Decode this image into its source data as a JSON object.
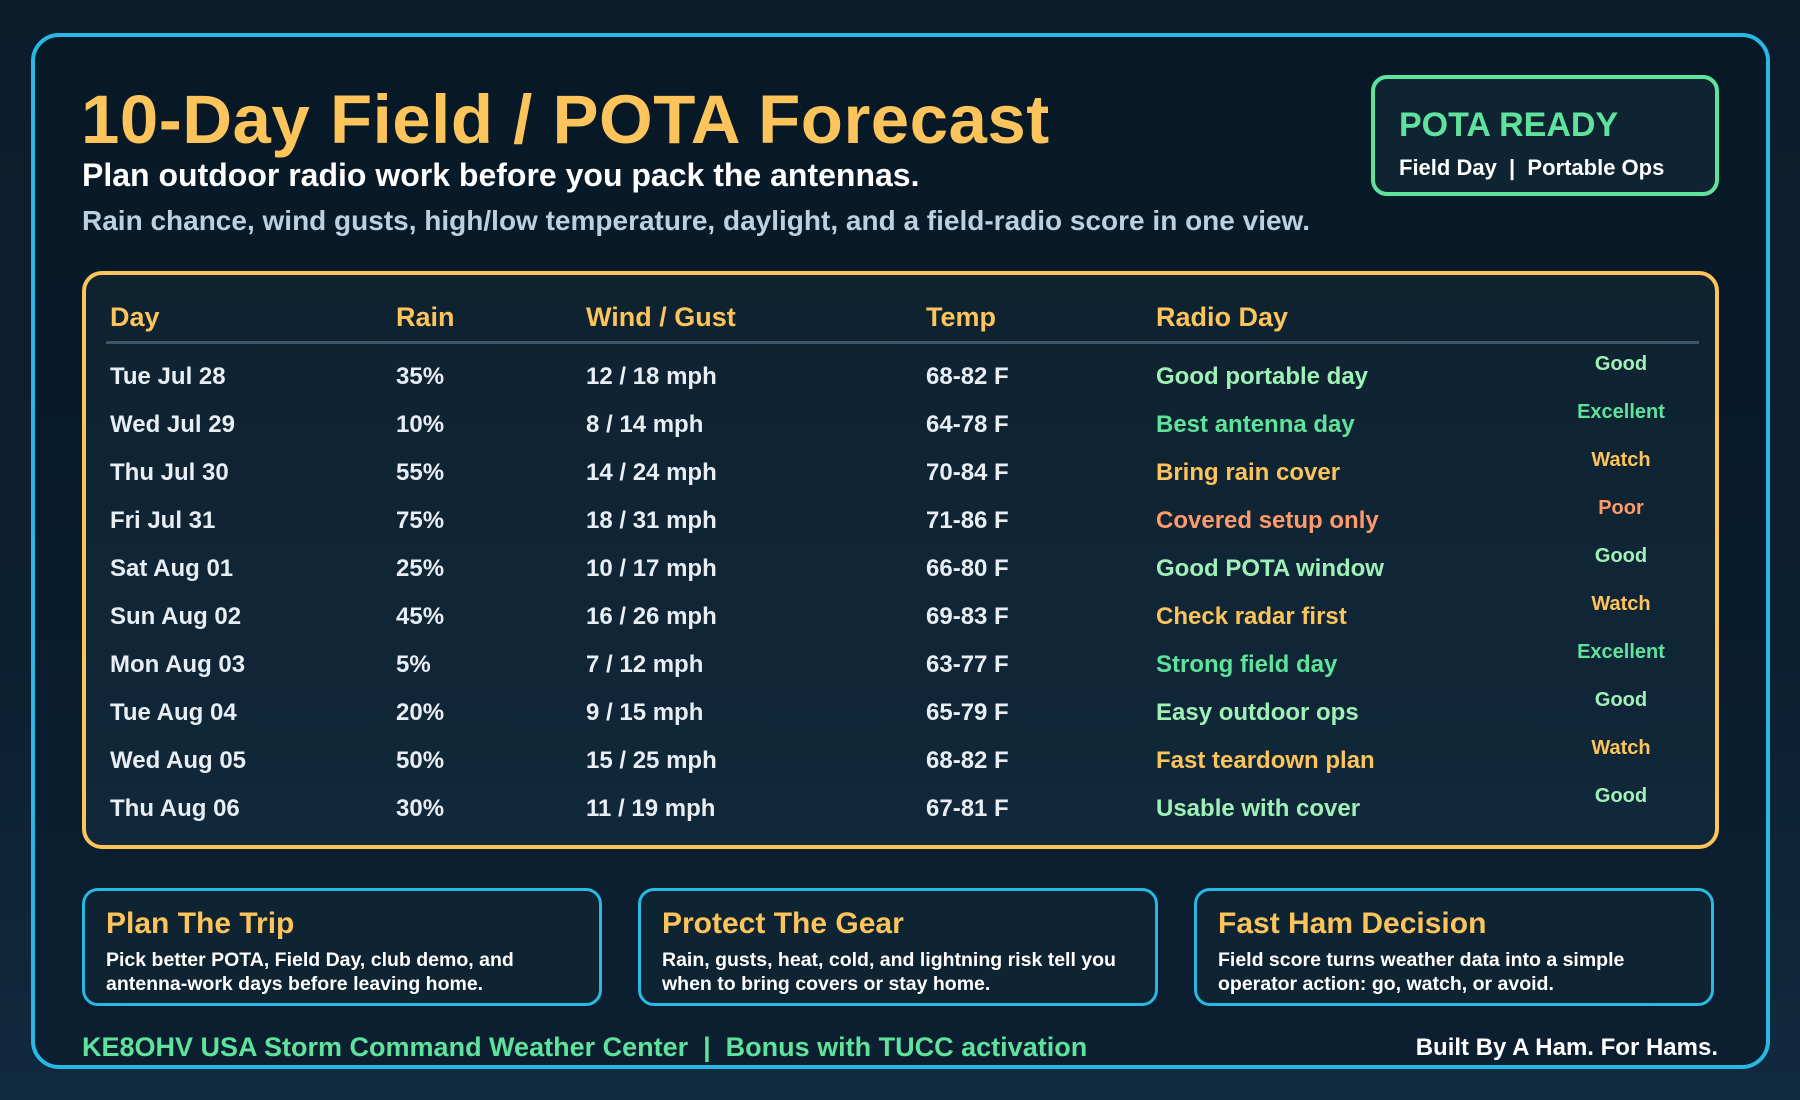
{
  "header": {
    "title": "10-Day Field / POTA Forecast",
    "subtitle": "Plan outdoor radio work before you pack the antennas.",
    "description": "Rain chance, wind gusts, high/low temperature, daylight, and a field-radio score in one view."
  },
  "badge": {
    "title": "POTA READY",
    "subtitle": "Field Day  |  Portable Ops"
  },
  "table": {
    "columns": [
      "Day",
      "Rain",
      "Wind / Gust",
      "Temp",
      "Radio Day"
    ],
    "rows": [
      {
        "day": "Tue Jul 28",
        "rain": "35%",
        "wind": "12 / 18 mph",
        "temp": "68-82 F",
        "note": "Good portable day",
        "score": "Good",
        "level": "good"
      },
      {
        "day": "Wed Jul 29",
        "rain": "10%",
        "wind": "8 / 14 mph",
        "temp": "64-78 F",
        "note": "Best antenna day",
        "score": "Excellent",
        "level": "excellent"
      },
      {
        "day": "Thu Jul 30",
        "rain": "55%",
        "wind": "14 / 24 mph",
        "temp": "70-84 F",
        "note": "Bring rain cover",
        "score": "Watch",
        "level": "watch"
      },
      {
        "day": "Fri Jul 31",
        "rain": "75%",
        "wind": "18 / 31 mph",
        "temp": "71-86 F",
        "note": "Covered setup only",
        "score": "Poor",
        "level": "poor"
      },
      {
        "day": "Sat Aug 01",
        "rain": "25%",
        "wind": "10 / 17 mph",
        "temp": "66-80 F",
        "note": "Good POTA window",
        "score": "Good",
        "level": "good"
      },
      {
        "day": "Sun Aug 02",
        "rain": "45%",
        "wind": "16 / 26 mph",
        "temp": "69-83 F",
        "note": "Check radar first",
        "score": "Watch",
        "level": "watch"
      },
      {
        "day": "Mon Aug 03",
        "rain": "5%",
        "wind": "7 / 12 mph",
        "temp": "63-77 F",
        "note": "Strong field day",
        "score": "Excellent",
        "level": "excellent"
      },
      {
        "day": "Tue Aug 04",
        "rain": "20%",
        "wind": "9 / 15 mph",
        "temp": "65-79 F",
        "note": "Easy outdoor ops",
        "score": "Good",
        "level": "good"
      },
      {
        "day": "Wed Aug 05",
        "rain": "50%",
        "wind": "15 / 25 mph",
        "temp": "68-82 F",
        "note": "Fast teardown plan",
        "score": "Watch",
        "level": "watch"
      },
      {
        "day": "Thu Aug 06",
        "rain": "30%",
        "wind": "11 / 19 mph",
        "temp": "67-81 F",
        "note": "Usable with cover",
        "score": "Good",
        "level": "good"
      }
    ]
  },
  "cards": [
    {
      "title": "Plan The Trip",
      "text": "Pick better POTA, Field Day, club demo, and antenna-work days before leaving home."
    },
    {
      "title": "Protect The Gear",
      "text": "Rain, gusts, heat, cold, and lightning risk tell you when to bring covers or stay home."
    },
    {
      "title": "Fast Ham Decision",
      "text": "Field score turns weather data into a simple operator action: go, watch, or avoid."
    }
  ],
  "footer": {
    "left": "KE8OHV USA Storm Command Weather Center  |  Bonus with TUCC activation",
    "right": "Built By A Ham. For Hams."
  },
  "colors": {
    "accent_gold": "#fcc45a",
    "accent_green": "#5fe39c",
    "accent_cyan": "#29b8e3",
    "good": "#9ff1b8",
    "watch": "#fcc45a",
    "poor": "#ff9a6b"
  }
}
